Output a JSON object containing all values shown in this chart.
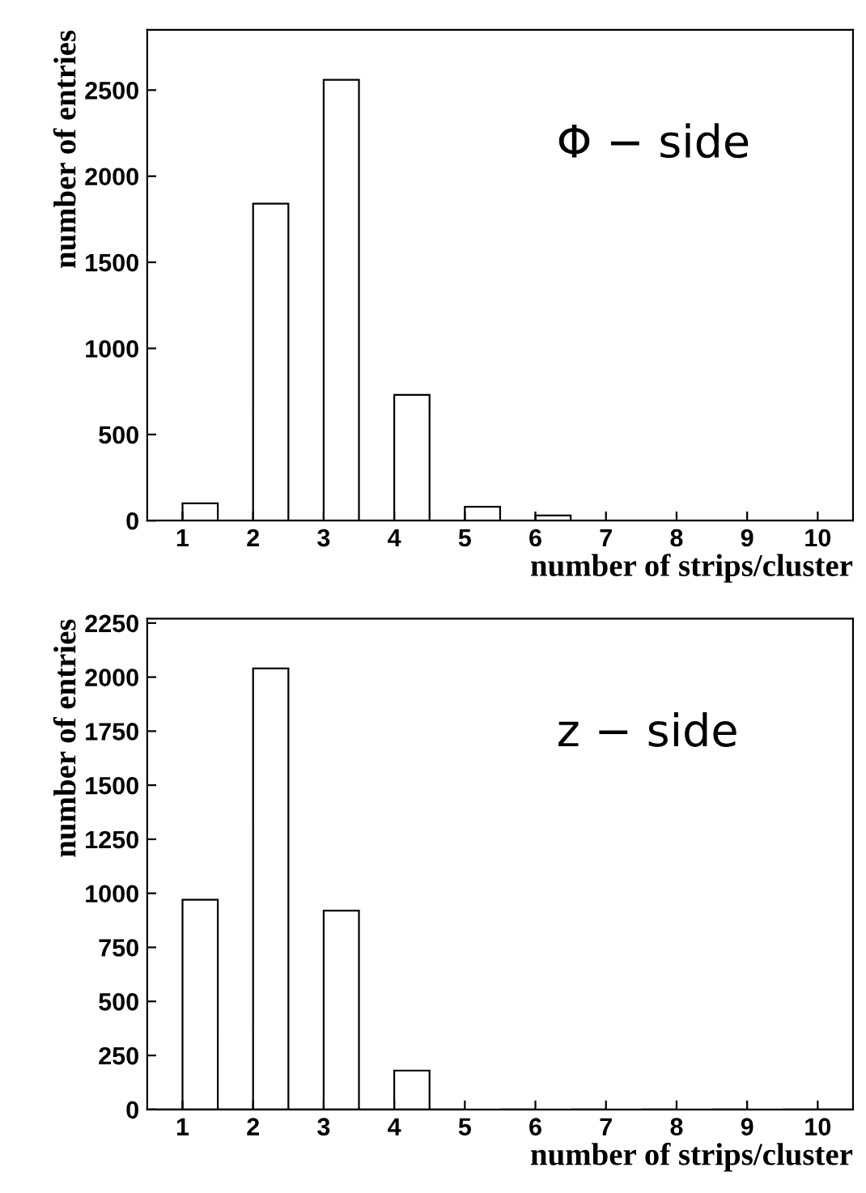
{
  "chart_data": [
    {
      "type": "histogram",
      "annotations": [
        "Φ − side"
      ],
      "xlabel": "number of strips/cluster",
      "ylabel": "number of entries",
      "color": "#000000",
      "bins": [
        0.5,
        1,
        1.5,
        2,
        2.5,
        3,
        3.5,
        4,
        4.5,
        5,
        5.5,
        6,
        6.5,
        7,
        7.5,
        8,
        8.5,
        9,
        9.5,
        10,
        10.5
      ],
      "values": [
        0,
        100,
        0,
        1840,
        0,
        2560,
        0,
        730,
        0,
        80,
        0,
        30,
        0,
        null,
        0,
        0,
        0,
        null,
        0,
        0
      ],
      "xlim": [
        0.5,
        10.5
      ],
      "xticks": [
        1,
        2,
        3,
        4,
        5,
        6,
        7,
        8,
        9,
        10
      ],
      "ylim": [
        0,
        2850
      ],
      "yticks": [
        0,
        500,
        1000,
        1500,
        2000,
        2500
      ],
      "grid": false
    },
    {
      "type": "histogram",
      "annotations": [
        "z − side"
      ],
      "xlabel": "number of strips/cluster",
      "ylabel": "number of entries",
      "color": "#000000",
      "bins": [
        0.5,
        1,
        1.5,
        2,
        2.5,
        3,
        3.5,
        4,
        4.5,
        5,
        5.5,
        6,
        6.5,
        7,
        7.5,
        8,
        8.5,
        9,
        9.5,
        10,
        10.5
      ],
      "values": [
        0,
        970,
        0,
        2040,
        0,
        920,
        0,
        180,
        0,
        null,
        0,
        null,
        0,
        null,
        0,
        null,
        0,
        null,
        0,
        0
      ],
      "xlim": [
        0.5,
        10.5
      ],
      "xticks": [
        1,
        2,
        3,
        4,
        5,
        6,
        7,
        8,
        9,
        10
      ],
      "ylim": [
        0,
        2270
      ],
      "yticks": [
        0,
        250,
        500,
        750,
        1000,
        1250,
        1500,
        1750,
        2000,
        2250
      ],
      "grid": false
    }
  ]
}
